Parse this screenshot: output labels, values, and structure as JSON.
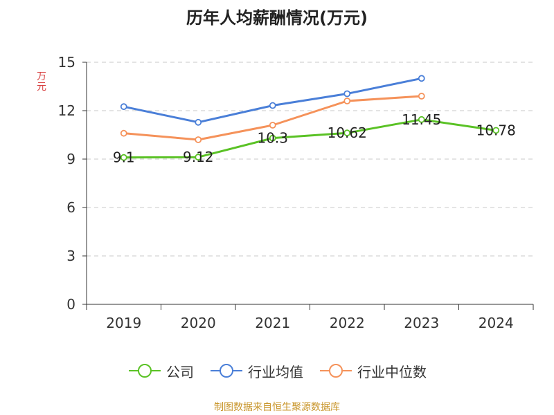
{
  "title": "历年人均薪酬情况(万元)",
  "source": "制图数据来自恒生聚源数据库",
  "chart_data": {
    "type": "line",
    "title": "历年人均薪酬情况(万元)",
    "ylabel": "万元",
    "categories": [
      "2019",
      "2020",
      "2021",
      "2022",
      "2023",
      "2024"
    ],
    "ylim": [
      0,
      15
    ],
    "yticks": [
      0,
      3,
      6,
      9,
      12,
      15
    ],
    "grid": true,
    "legend_position": "bottom",
    "series": [
      {
        "name": "公司",
        "color": "#5ac225",
        "values": [
          9.1,
          9.12,
          10.3,
          10.62,
          11.45,
          10.78
        ],
        "labels": [
          "9.1",
          "9.12",
          "10.3",
          "10.62",
          "11.45",
          "10.78"
        ]
      },
      {
        "name": "行业均值",
        "color": "#4a7fd8",
        "values": [
          12.25,
          11.28,
          12.32,
          13.05,
          14.0,
          null
        ]
      },
      {
        "name": "行业中位数",
        "color": "#f5925a",
        "values": [
          10.6,
          10.2,
          11.1,
          12.6,
          12.9,
          null
        ]
      }
    ]
  }
}
